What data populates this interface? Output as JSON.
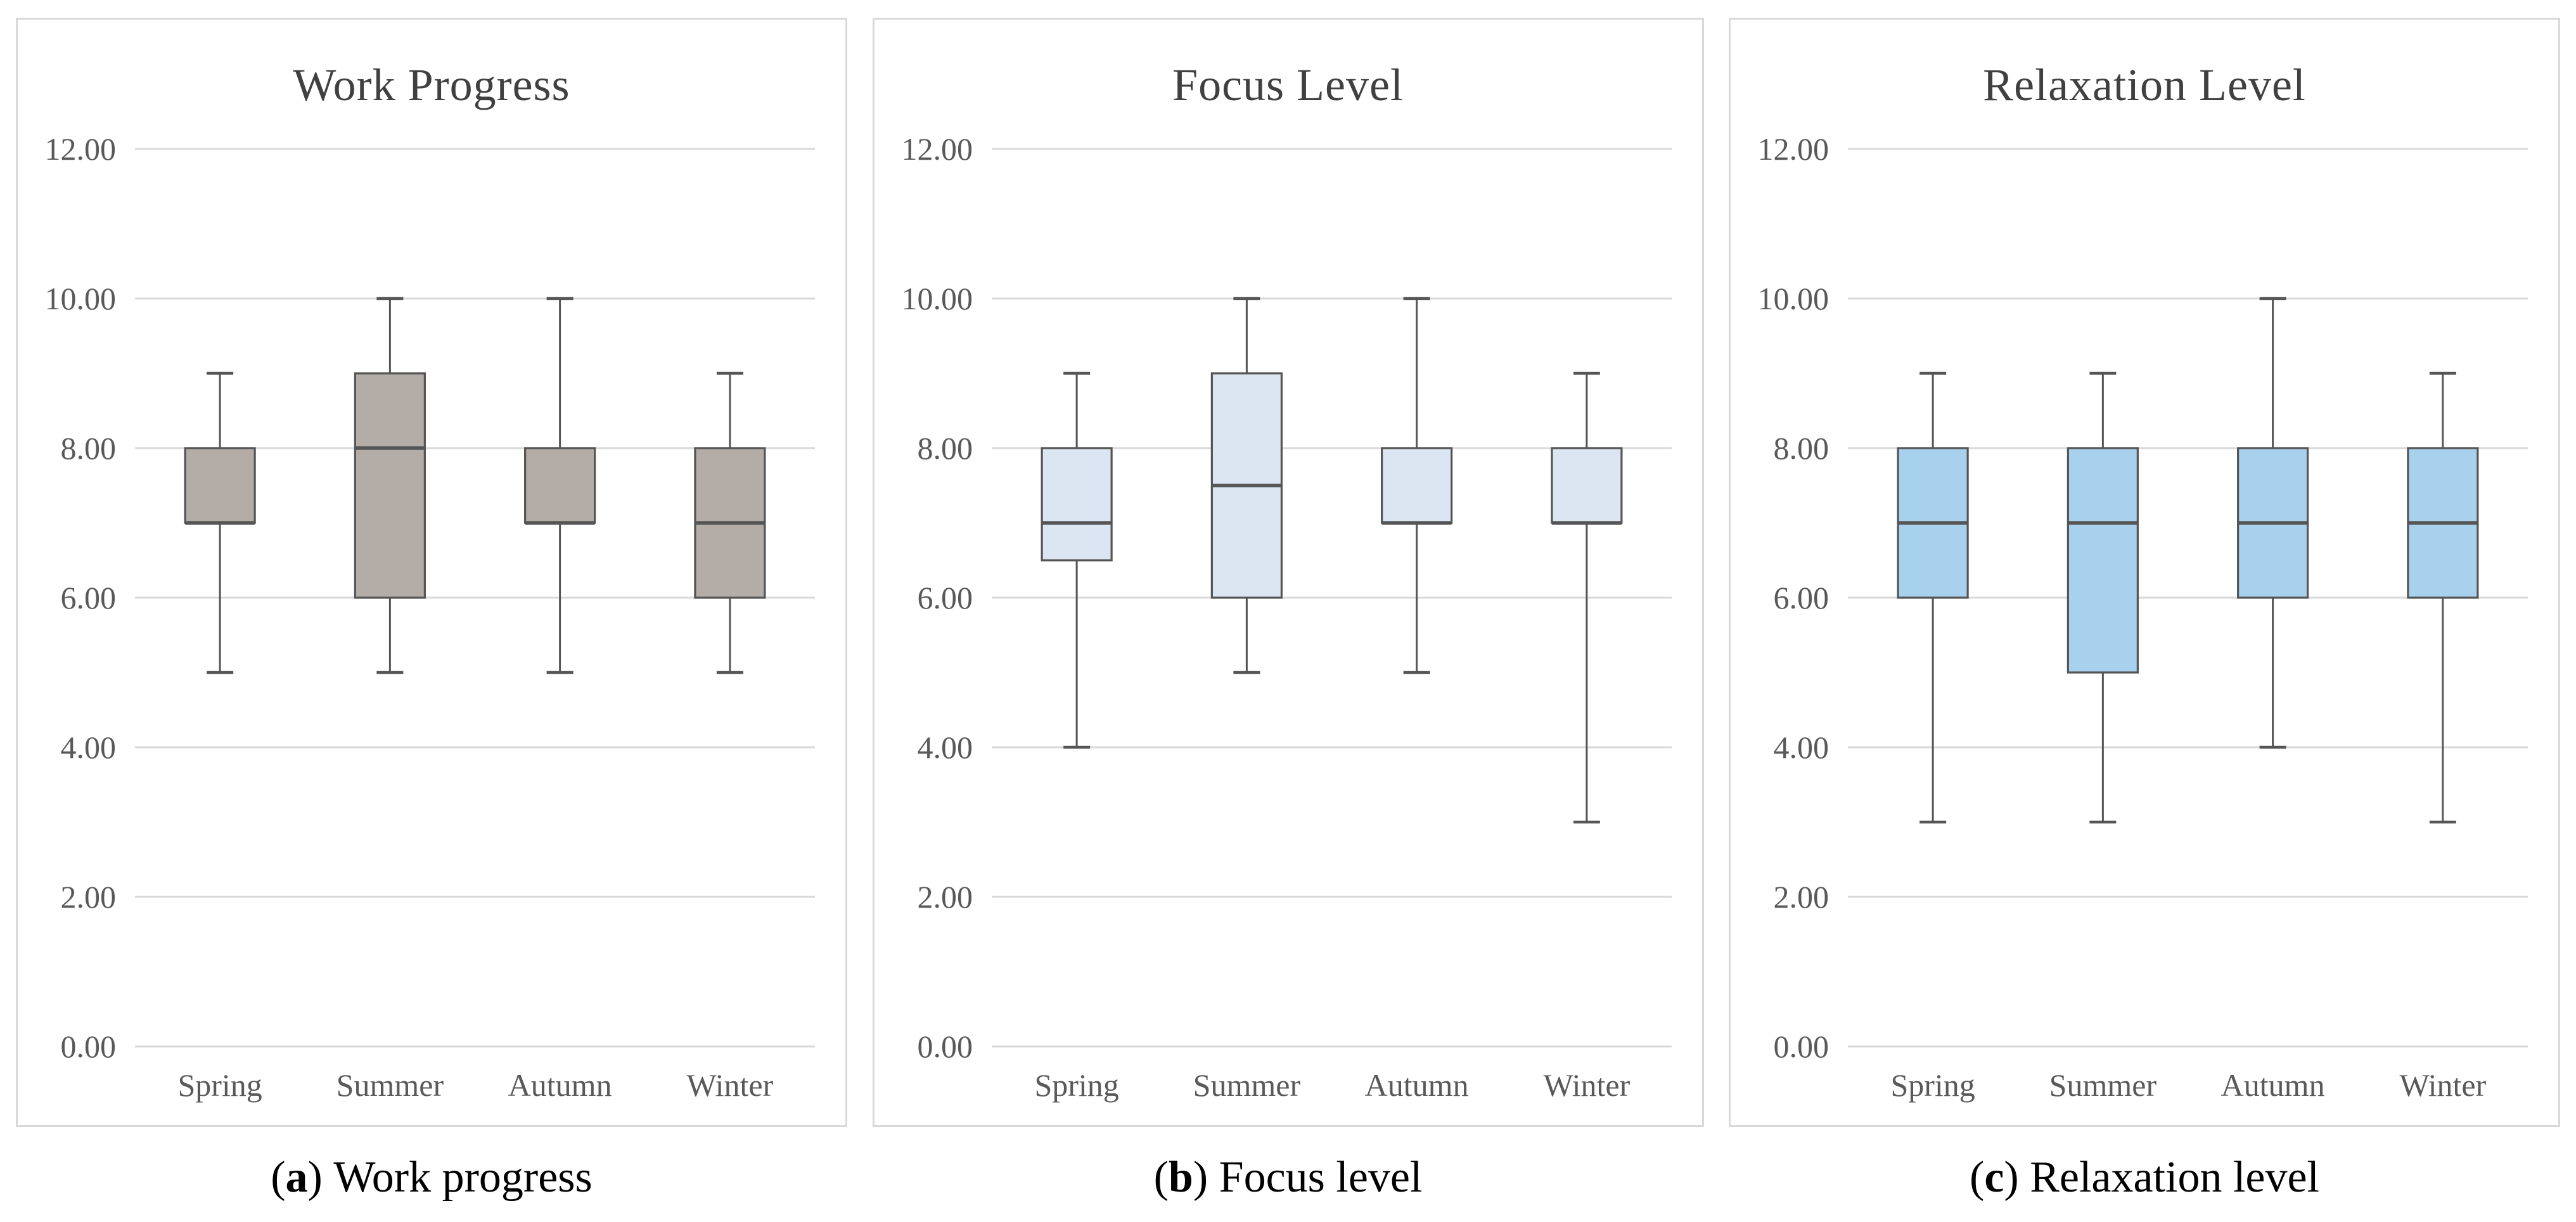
{
  "figure": {
    "background": "#ffffff",
    "panel_border_color": "#d9d9d9",
    "grid_color": "#d9d9d9",
    "line_color": "#555555",
    "title_color": "#404040",
    "tick_color": "#595959",
    "caption_color": "#000000"
  },
  "chart_data": [
    {
      "type": "box",
      "title": "Work Progress",
      "caption": {
        "open": "(",
        "letter": "a",
        "close": ") ",
        "text": "Work progress"
      },
      "categories": [
        "Spring",
        "Summer",
        "Autumn",
        "Winter"
      ],
      "ylim": [
        0,
        12
      ],
      "grid": true,
      "legend": "none",
      "yticks": [
        {
          "value": 0,
          "label": "0.00"
        },
        {
          "value": 2,
          "label": "2.00"
        },
        {
          "value": 4,
          "label": "4.00"
        },
        {
          "value": 6,
          "label": "6.00"
        },
        {
          "value": 8,
          "label": "8.00"
        },
        {
          "value": 10,
          "label": "10.00"
        },
        {
          "value": 12,
          "label": "12.00"
        }
      ],
      "box_fill": "#b3aca7",
      "box_border": "#555555",
      "series": [
        {
          "category": "Spring",
          "min": 5,
          "q1": 7,
          "median": 7,
          "q3": 8,
          "max": 9
        },
        {
          "category": "Summer",
          "min": 5,
          "q1": 6,
          "median": 8,
          "q3": 9,
          "max": 10
        },
        {
          "category": "Autumn",
          "min": 5,
          "q1": 7,
          "median": 7,
          "q3": 8,
          "max": 10
        },
        {
          "category": "Winter",
          "min": 5,
          "q1": 6,
          "median": 7,
          "q3": 8,
          "max": 9
        }
      ]
    },
    {
      "type": "box",
      "title": "Focus Level",
      "caption": {
        "open": "(",
        "letter": "b",
        "close": ") ",
        "text": "Focus level"
      },
      "categories": [
        "Spring",
        "Summer",
        "Autumn",
        "Winter"
      ],
      "ylim": [
        0,
        12
      ],
      "grid": true,
      "legend": "none",
      "yticks": [
        {
          "value": 0,
          "label": "0.00"
        },
        {
          "value": 2,
          "label": "2.00"
        },
        {
          "value": 4,
          "label": "4.00"
        },
        {
          "value": 6,
          "label": "6.00"
        },
        {
          "value": 8,
          "label": "8.00"
        },
        {
          "value": 10,
          "label": "10.00"
        },
        {
          "value": 12,
          "label": "12.00"
        }
      ],
      "box_fill": "#dce6f2",
      "box_border": "#555555",
      "series": [
        {
          "category": "Spring",
          "min": 4,
          "q1": 6.5,
          "median": 7,
          "q3": 8,
          "max": 9
        },
        {
          "category": "Summer",
          "min": 5,
          "q1": 6,
          "median": 7.5,
          "q3": 9,
          "max": 10
        },
        {
          "category": "Autumn",
          "min": 5,
          "q1": 7,
          "median": 7,
          "q3": 8,
          "max": 10
        },
        {
          "category": "Winter",
          "min": 3,
          "q1": 7,
          "median": 7,
          "q3": 8,
          "max": 9
        }
      ]
    },
    {
      "type": "box",
      "title": "Relaxation Level",
      "caption": {
        "open": "(",
        "letter": "c",
        "close": ") ",
        "text": "Relaxation level"
      },
      "categories": [
        "Spring",
        "Summer",
        "Autumn",
        "Winter"
      ],
      "ylim": [
        0,
        12
      ],
      "grid": true,
      "legend": "none",
      "yticks": [
        {
          "value": 0,
          "label": "0.00"
        },
        {
          "value": 2,
          "label": "2.00"
        },
        {
          "value": 4,
          "label": "4.00"
        },
        {
          "value": 6,
          "label": "6.00"
        },
        {
          "value": 8,
          "label": "8.00"
        },
        {
          "value": 10,
          "label": "10.00"
        },
        {
          "value": 12,
          "label": "12.00"
        }
      ],
      "box_fill": "#a7d1ec",
      "box_border": "#555555",
      "series": [
        {
          "category": "Spring",
          "min": 3,
          "q1": 6,
          "median": 7,
          "q3": 8,
          "max": 9
        },
        {
          "category": "Summer",
          "min": 3,
          "q1": 5,
          "median": 7,
          "q3": 8,
          "max": 9
        },
        {
          "category": "Autumn",
          "min": 4,
          "q1": 6,
          "median": 7,
          "q3": 8,
          "max": 10
        },
        {
          "category": "Winter",
          "min": 3,
          "q1": 6,
          "median": 7,
          "q3": 8,
          "max": 9
        }
      ]
    }
  ]
}
